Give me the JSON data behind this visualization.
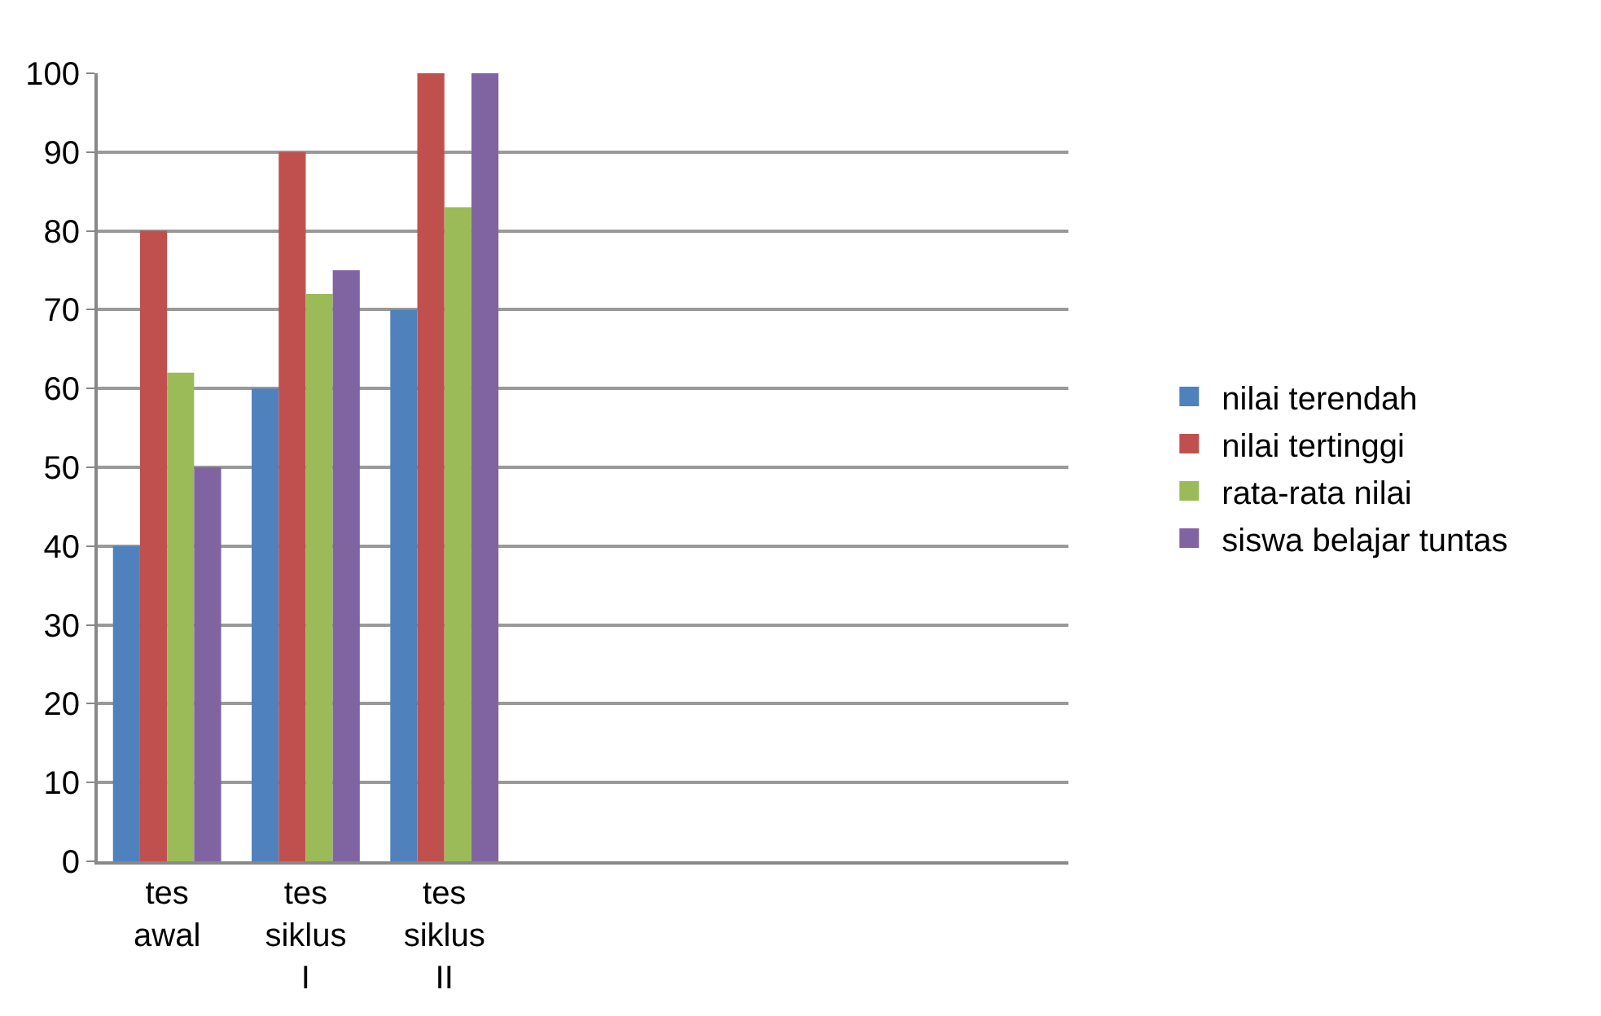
{
  "chart_data": {
    "type": "bar",
    "categories": [
      "tes awal",
      "tes siklus I",
      "tes siklus II",
      null,
      null,
      null,
      null
    ],
    "series": [
      {
        "name": "nilai terendah",
        "color": "#4f81bd",
        "values": [
          40,
          60,
          70,
          null,
          null,
          null,
          null
        ]
      },
      {
        "name": "nilai tertinggi",
        "color": "#c0504d",
        "values": [
          80,
          90,
          100,
          null,
          null,
          null,
          null
        ]
      },
      {
        "name": "rata-rata nilai",
        "color": "#9bbb59",
        "values": [
          62,
          72,
          83,
          null,
          null,
          null,
          null
        ]
      },
      {
        "name": "siswa belajar tuntas",
        "color": "#8064a2",
        "values": [
          50,
          75,
          100,
          null,
          null,
          null,
          null
        ]
      }
    ],
    "ylim": [
      0,
      100
    ],
    "yticks": [
      0,
      10,
      20,
      30,
      40,
      50,
      60,
      70,
      80,
      90,
      100
    ],
    "grid": "y",
    "legend": "right"
  }
}
